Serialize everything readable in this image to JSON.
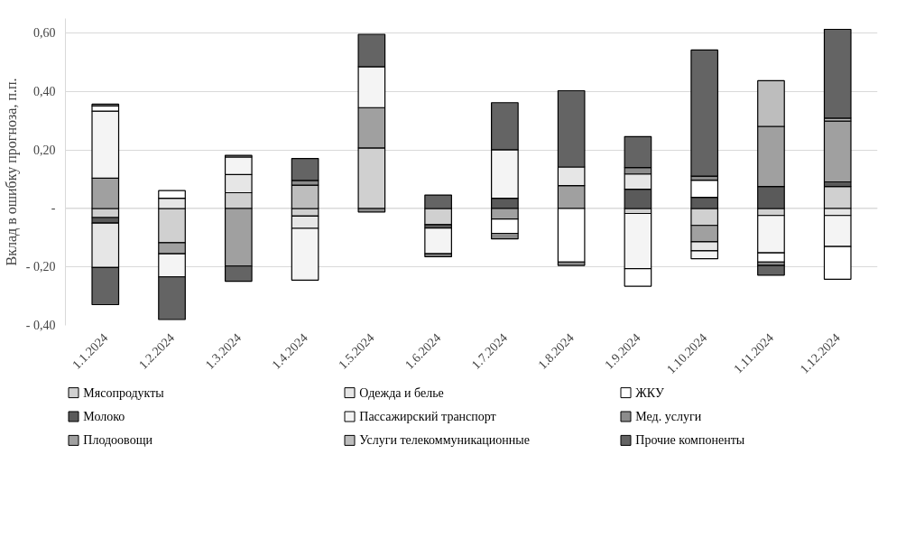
{
  "chart_data": {
    "type": "bar",
    "stacked": true,
    "ylabel": "Вклад в ошибку прогноза, п.п.",
    "categories": [
      "1.1.2024",
      "1.2.2024",
      "1.3.2024",
      "1.4.2024",
      "1.5.2024",
      "1.6.2024",
      "1.7.2024",
      "1.8.2024",
      "1.9.2024",
      "1.10.2024",
      "1.11.2024",
      "1.12.2024"
    ],
    "ylim": [
      -0.4,
      0.65
    ],
    "yticks": [
      {
        "value": -0.4,
        "label": "- 0,40"
      },
      {
        "value": -0.2,
        "label": "- 0,20"
      },
      {
        "value": 0,
        "label": "-"
      },
      {
        "value": 0.2,
        "label": "0,20"
      },
      {
        "value": 0.4,
        "label": "0,40"
      },
      {
        "value": 0.6,
        "label": "0,60"
      }
    ],
    "grid": "y",
    "legend": "bottom",
    "series": [
      {
        "name": "Мясопродукты",
        "color": "#d0d0d0",
        "values": [
          -0.031,
          -0.117,
          0.054,
          -0.026,
          0.207,
          -0.055,
          null,
          null,
          -0.017,
          -0.058,
          -0.024,
          0.075
        ]
      },
      {
        "name": "Молоко",
        "color": "#5a5a5a",
        "values": [
          -0.019,
          null,
          null,
          null,
          null,
          -0.012,
          0.035,
          null,
          0.066,
          0.038,
          0.075,
          0.016
        ]
      },
      {
        "name": "Плодоовощи",
        "color": "#a0a0a0",
        "values": [
          0.104,
          -0.038,
          -0.197,
          null,
          0.138,
          null,
          -0.036,
          0.078,
          null,
          -0.056,
          0.206,
          0.208
        ]
      },
      {
        "name": "Одежда и белье",
        "color": "#e6e6e6",
        "values": [
          -0.152,
          0.035,
          0.062,
          -0.042,
          null,
          null,
          null,
          0.064,
          0.052,
          -0.031,
          null,
          -0.024
        ]
      },
      {
        "name": "Пассажирский транспорт",
        "color": "#f4f4f4",
        "values": [
          0.229,
          -0.079,
          0.06,
          -0.177,
          0.14,
          -0.088,
          0.166,
          null,
          -0.189,
          -0.027,
          -0.128,
          -0.106
        ]
      },
      {
        "name": "Услуги телекоммуникационные",
        "color": "#bdbdbd",
        "values": [
          null,
          null,
          null,
          0.08,
          null,
          null,
          null,
          null,
          null,
          null,
          0.156,
          0.01
        ]
      },
      {
        "name": "ЖКУ",
        "color": "#ffffff",
        "values": [
          0.018,
          0.026,
          null,
          null,
          null,
          null,
          -0.049,
          -0.183,
          -0.06,
          0.059,
          -0.031,
          -0.112
        ]
      },
      {
        "name": "Мед. услуги",
        "color": "#8c8c8c",
        "values": [
          0.006,
          null,
          0.006,
          0.016,
          -0.012,
          -0.01,
          -0.019,
          -0.012,
          0.022,
          0.014,
          -0.012,
          null
        ]
      },
      {
        "name": "Прочие компоненты",
        "color": "#646464",
        "values": [
          -0.127,
          -0.146,
          -0.052,
          0.075,
          0.111,
          0.046,
          0.161,
          0.261,
          0.106,
          0.431,
          -0.033,
          0.304
        ]
      }
    ]
  }
}
